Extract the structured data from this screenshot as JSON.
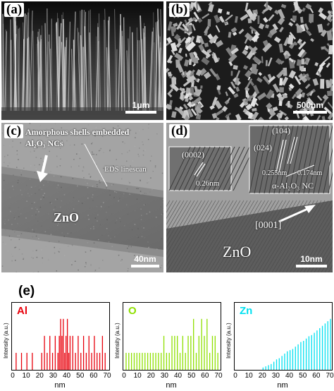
{
  "panels": {
    "a": {
      "label": "(a)",
      "scale": "1μm"
    },
    "b": {
      "label": "(b)",
      "scale": "500nm"
    },
    "c": {
      "label": "(c)",
      "scale": "40nm",
      "annotation_line1": "Amorphous shells embedded",
      "annotation_line2": "Al₂O₃ NCs",
      "linescan": "EDS linescan",
      "material": "ZnO"
    },
    "d": {
      "label": "(d)",
      "scale": "10nm",
      "inset1_plane": "(0002)",
      "inset1_spacing": "0.26nm",
      "inset2_plane1": "(104)",
      "inset2_plane2": "(024)",
      "inset2_spacing": "0.255nm",
      "inset2_spacing2": "0.174nm",
      "inset2_phase": "α-Al₂O₃ NC",
      "direction": "[0001]",
      "material": "ZnO"
    },
    "e": {
      "label": "(e)"
    }
  },
  "chart_data": [
    {
      "type": "bar",
      "element": "Al",
      "color": "#e8000b",
      "xlabel": "nm",
      "ylabel": "Intensity (a.u.)",
      "xlim": [
        0,
        70
      ],
      "xticks": [
        "0",
        "10",
        "20",
        "30",
        "40",
        "50",
        "60",
        "70"
      ],
      "x": [
        2,
        6,
        10,
        14,
        21,
        23,
        25,
        27,
        29,
        31,
        33,
        34,
        35,
        36,
        37,
        38,
        39,
        40,
        41,
        42,
        44,
        46,
        48,
        50,
        52,
        54,
        56,
        58,
        60,
        62,
        64,
        66,
        68
      ],
      "values": [
        1,
        1,
        1,
        1,
        1,
        2,
        1,
        2,
        1,
        2,
        1,
        2,
        3,
        2,
        3,
        1,
        2,
        3,
        1,
        2,
        2,
        1,
        2,
        1,
        2,
        1,
        2,
        1,
        2,
        1,
        1,
        2,
        1
      ]
    },
    {
      "type": "bar",
      "element": "O",
      "color": "#8ee000",
      "xlabel": "nm",
      "ylabel": "Intensity (a.u.)",
      "xlim": [
        0,
        70
      ],
      "xticks": [
        "0",
        "10",
        "20",
        "30",
        "40",
        "50",
        "60",
        "70"
      ],
      "x": [
        1,
        3,
        5,
        7,
        9,
        11,
        13,
        15,
        17,
        19,
        21,
        23,
        25,
        27,
        29,
        31,
        33,
        35,
        37,
        39,
        41,
        43,
        45,
        47,
        49,
        51,
        53,
        55,
        57,
        59,
        61,
        63,
        65,
        67,
        69
      ],
      "values": [
        1,
        1,
        1,
        1,
        1,
        1,
        1,
        1,
        1,
        1,
        1,
        1,
        1,
        1,
        2,
        1,
        1,
        2,
        2,
        2,
        1,
        2,
        1,
        2,
        2,
        3,
        1,
        2,
        3,
        2,
        3,
        1,
        2,
        2,
        1
      ]
    },
    {
      "type": "bar",
      "element": "Zn",
      "color": "#00e0f0",
      "xlabel": "nm",
      "ylabel": "Intensity (a.u.)",
      "xlim": [
        0,
        70
      ],
      "xticks": [
        "0",
        "10",
        "20",
        "30",
        "40",
        "50",
        "60",
        "70"
      ],
      "x": [
        20,
        22,
        24,
        26,
        28,
        30,
        32,
        34,
        36,
        38,
        40,
        42,
        44,
        46,
        48,
        50,
        52,
        54,
        56,
        58,
        60,
        62,
        64,
        66,
        68,
        70
      ],
      "values": [
        0.1,
        0.15,
        0.2,
        0.25,
        0.35,
        0.45,
        0.5,
        0.6,
        0.7,
        0.8,
        0.85,
        0.9,
        1,
        1.1,
        1.2,
        1.25,
        1.35,
        1.45,
        1.5,
        1.6,
        1.7,
        1.8,
        1.9,
        2,
        2.1,
        2.2
      ]
    }
  ]
}
